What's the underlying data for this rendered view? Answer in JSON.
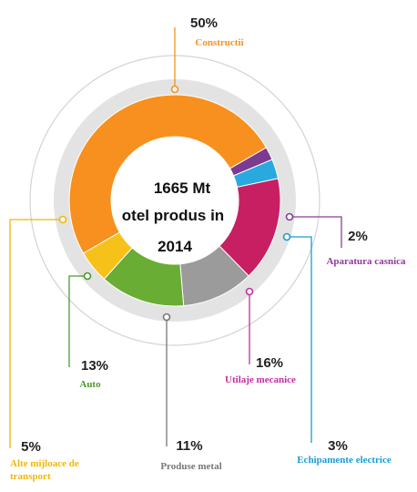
{
  "chart_data": {
    "type": "pie",
    "center_text": [
      "1665 Mt",
      "otel produs in",
      "2014"
    ],
    "slices": [
      {
        "label": "Constructii",
        "percent_label": "50%",
        "value": 50,
        "color": "#f7901e"
      },
      {
        "label": "Aparatura casnica",
        "percent_label": "2%",
        "value": 2,
        "color": "#7c3a91"
      },
      {
        "label": "Echipamente electrice",
        "percent_label": "3%",
        "value": 3,
        "color": "#29a9e0"
      },
      {
        "label": "Utilaje mecanice",
        "percent_label": "16%",
        "value": 16,
        "color": "#c81f63"
      },
      {
        "label": "Produse metal",
        "percent_label": "11%",
        "value": 11,
        "color": "#9b9b9b"
      },
      {
        "label": "Auto",
        "percent_label": "13%",
        "value": 13,
        "color": "#69ad34"
      },
      {
        "label": "Alte mijloace de transport",
        "percent_label": "5%",
        "value": 5,
        "color": "#f6c21a"
      }
    ],
    "label_colors": [
      "#f7901e",
      "#8e3b9a",
      "#1b9bd7",
      "#c02fa2",
      "#777777",
      "#4a9a2a",
      "#f2b705"
    ]
  }
}
